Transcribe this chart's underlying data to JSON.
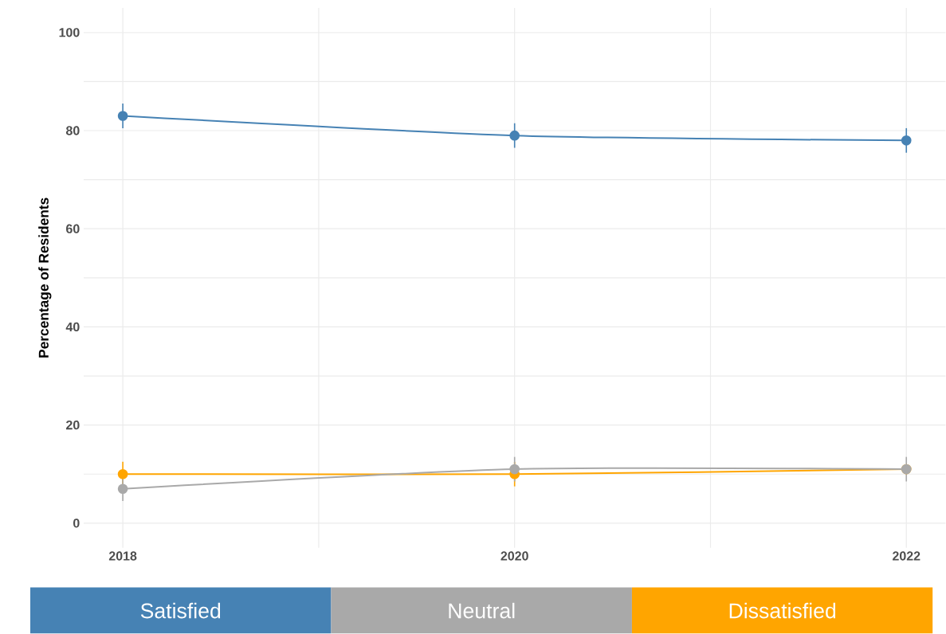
{
  "chart_data": {
    "type": "line",
    "ylabel": "Percentage of Residents",
    "x": [
      2018,
      2020,
      2022
    ],
    "series": [
      {
        "name": "Satisfied",
        "color": "#4682b4",
        "values": [
          83,
          79,
          78
        ],
        "errors": [
          2.5,
          2.5,
          2.5
        ]
      },
      {
        "name": "Neutral",
        "color": "#a9a9a9",
        "values": [
          7,
          11,
          11
        ],
        "errors": [
          2.5,
          2.5,
          2.5
        ]
      },
      {
        "name": "Dissatisfied",
        "color": "#ffa500",
        "values": [
          10,
          10,
          11
        ],
        "errors": [
          2.5,
          2.5,
          null
        ]
      }
    ],
    "xlim": [
      2017.8,
      2022.2
    ],
    "ylim": [
      -5,
      105
    ],
    "xticks": [
      2018,
      {
        "value": 2019,
        "label": null
      },
      2020,
      {
        "value": 2021,
        "label": null
      },
      2022
    ],
    "yticks": [
      0,
      {
        "value": 10,
        "label": null
      },
      20,
      {
        "value": 30,
        "label": null
      },
      40,
      {
        "value": 50,
        "label": null
      },
      60,
      {
        "value": 70,
        "label": null
      },
      80,
      {
        "value": 90,
        "label": null
      },
      100
    ],
    "grid": true,
    "legend": "bottom",
    "marker": "circle"
  }
}
